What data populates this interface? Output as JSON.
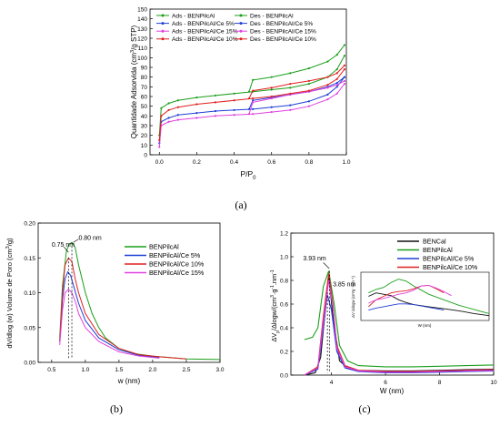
{
  "captions": {
    "a": "(a)",
    "b": "(b)",
    "c": "(c)"
  },
  "chart_data": [
    {
      "id": "a",
      "type": "line",
      "ylabel_main": "Quantidade Adsorvida (cm",
      "ylabel_sup": "3",
      "ylabel_tail": "/g STP)",
      "xlabel_main": "P/P",
      "xlabel_sub": "0",
      "xlim": [
        -0.05,
        1.0
      ],
      "ylim": [
        0,
        150
      ],
      "xticks": [
        "0.0",
        "0.2",
        "0.4",
        "0.6",
        "0.8",
        "1.0"
      ],
      "xtick_values": [
        0,
        0.2,
        0.4,
        0.6,
        0.8,
        1.0
      ],
      "yticks": [
        "0",
        "10",
        "20",
        "30",
        "40",
        "50",
        "60",
        "70",
        "80",
        "90",
        "100",
        "110",
        "120",
        "130",
        "140",
        "150"
      ],
      "ytick_values": [
        0,
        10,
        20,
        30,
        40,
        50,
        60,
        70,
        80,
        90,
        100,
        110,
        120,
        130,
        140,
        150
      ],
      "legend": [
        "Ads - BENPilcAl",
        "Des - BENPilcAl",
        "Ads - BENPilcAl/Ce 5%",
        "Des - BENPilcAl/Ce 5%",
        "Ads - BENPilcAl/Ce 15%",
        "Des - BENPilcAl/Ce 15%",
        "Ads - BENPilcAl/Ce 10%",
        "Des - BENPilcAl/Ce 10%"
      ],
      "series": [
        {
          "name": "Ads - BENPilcAl",
          "color": "#1a9e1a",
          "x": [
            0,
            0.01,
            0.05,
            0.1,
            0.2,
            0.3,
            0.4,
            0.5,
            0.6,
            0.7,
            0.8,
            0.9,
            0.95,
            0.99
          ],
          "y": [
            20,
            48,
            53,
            56,
            59,
            61,
            63,
            65,
            67,
            69,
            73,
            80,
            88,
            102
          ]
        },
        {
          "name": "Des - BENPilcAl",
          "color": "#1a9e1a",
          "x": [
            0.48,
            0.5,
            0.6,
            0.7,
            0.8,
            0.9,
            0.95,
            0.99
          ],
          "y": [
            65,
            77,
            80,
            84,
            89,
            96,
            103,
            113
          ]
        },
        {
          "name": "Ads - BENPilcAl/Ce 5%",
          "color": "#1f3fd6",
          "x": [
            0,
            0.01,
            0.05,
            0.1,
            0.2,
            0.3,
            0.4,
            0.5,
            0.6,
            0.7,
            0.8,
            0.9,
            0.95,
            0.99
          ],
          "y": [
            12,
            34,
            38,
            41,
            43,
            45,
            46,
            47,
            49,
            51,
            55,
            62,
            70,
            80
          ]
        },
        {
          "name": "Des - BENPilcAl/Ce 5%",
          "color": "#1f3fd6",
          "x": [
            0.48,
            0.5,
            0.6,
            0.7,
            0.8,
            0.9,
            0.95,
            0.99
          ],
          "y": [
            47,
            56,
            59,
            62,
            65,
            70,
            74,
            80
          ]
        },
        {
          "name": "Ads - BENPilcAl/Ce 15%",
          "color": "#e040e0",
          "x": [
            0,
            0.01,
            0.05,
            0.1,
            0.2,
            0.3,
            0.4,
            0.5,
            0.6,
            0.7,
            0.8,
            0.9,
            0.95,
            0.99
          ],
          "y": [
            8,
            30,
            34,
            36,
            38,
            40,
            41,
            42,
            44,
            46,
            50,
            57,
            63,
            73
          ]
        },
        {
          "name": "Des - BENPilcAl/Ce 15%",
          "color": "#e040e0",
          "x": [
            0.48,
            0.5,
            0.6,
            0.7,
            0.8,
            0.9,
            0.95,
            0.99
          ],
          "y": [
            42,
            54,
            58,
            62,
            65,
            69,
            72,
            76
          ]
        },
        {
          "name": "Ads - BENPilcAl/Ce 10%",
          "color": "#e02020",
          "x": [
            0,
            0.01,
            0.05,
            0.1,
            0.2,
            0.3,
            0.4,
            0.5,
            0.6,
            0.7,
            0.8,
            0.9,
            0.95,
            0.99
          ],
          "y": [
            15,
            40,
            46,
            49,
            52,
            54,
            56,
            58,
            60,
            63,
            66,
            72,
            78,
            88
          ]
        },
        {
          "name": "Des - BENPilcAl/Ce 10%",
          "color": "#e02020",
          "x": [
            0.48,
            0.5,
            0.6,
            0.7,
            0.8,
            0.9,
            0.95,
            0.99
          ],
          "y": [
            58,
            66,
            69,
            73,
            76,
            80,
            84,
            92
          ]
        }
      ]
    },
    {
      "id": "b",
      "type": "line",
      "ylabel_main": "dV/dlog (w) Volume de Poro (cm",
      "ylabel_sup": "3",
      "ylabel_tail": "/g)",
      "xlabel": "w (nm)",
      "xlim": [
        0.3,
        3.0
      ],
      "ylim": [
        0,
        0.2
      ],
      "xticks": [
        "0.5",
        "1.0",
        "1.5",
        "2.0",
        "2.5",
        "3.0"
      ],
      "xtick_values": [
        0.5,
        1.0,
        1.5,
        2.0,
        2.5,
        3.0
      ],
      "yticks": [
        "0.00",
        "0.05",
        "0.10",
        "0.15",
        "0.20"
      ],
      "ytick_values": [
        0,
        0.05,
        0.1,
        0.15,
        0.2
      ],
      "annotations": [
        "0.75 nm",
        "0.80 nm"
      ],
      "legend": [
        "BENPilcAl",
        "BENPilcAl/Ce 5%",
        "BENPilcAl/Ce 10%",
        "BENPilcAl/Ce 15%"
      ],
      "series": [
        {
          "name": "BENPilcAl",
          "color": "#1a9e1a",
          "x": [
            0.62,
            0.66,
            0.72,
            0.76,
            0.8,
            0.85,
            0.9,
            1.0,
            1.1,
            1.2,
            1.3,
            1.5,
            1.7,
            2.0,
            2.5,
            3.0
          ],
          "y": [
            0.035,
            0.11,
            0.16,
            0.17,
            0.172,
            0.165,
            0.14,
            0.1,
            0.07,
            0.05,
            0.035,
            0.02,
            0.013,
            0.009,
            0.005,
            0.004
          ]
        },
        {
          "name": "BENPilcAl/Ce 5%",
          "color": "#1f3fd6",
          "x": [
            0.62,
            0.66,
            0.7,
            0.74,
            0.78,
            0.84,
            0.9,
            1.0,
            1.2,
            1.5,
            1.8,
            2.1
          ],
          "y": [
            0.03,
            0.09,
            0.12,
            0.13,
            0.125,
            0.105,
            0.085,
            0.06,
            0.035,
            0.018,
            0.01,
            0.007
          ]
        },
        {
          "name": "BENPilcAl/Ce 10%",
          "color": "#e02020",
          "x": [
            0.62,
            0.66,
            0.7,
            0.75,
            0.8,
            0.85,
            0.9,
            1.0,
            1.2,
            1.5,
            1.8,
            2.1,
            2.5
          ],
          "y": [
            0.03,
            0.1,
            0.14,
            0.15,
            0.145,
            0.12,
            0.1,
            0.07,
            0.04,
            0.02,
            0.011,
            0.008,
            0.005
          ]
        },
        {
          "name": "BENPilcAl/Ce 15%",
          "color": "#e040e0",
          "x": [
            0.62,
            0.66,
            0.7,
            0.75,
            0.8,
            0.86,
            0.9,
            1.0,
            1.2,
            1.5,
            1.8,
            2.1
          ],
          "y": [
            0.025,
            0.075,
            0.1,
            0.105,
            0.1,
            0.085,
            0.07,
            0.05,
            0.03,
            0.015,
            0.009,
            0.006
          ]
        }
      ]
    },
    {
      "id": "c",
      "type": "line",
      "ylabel_main": "ΔV",
      "ylabel_rest": "/Δlogw/(cm",
      "ylabel_unit": "·g",
      "ylabel_end": ".nm",
      "xlabel": "W (nm)",
      "xlim": [
        2.5,
        10
      ],
      "ylim": [
        0,
        1.2
      ],
      "xticks": [
        "4",
        "6",
        "8",
        "10"
      ],
      "xtick_values": [
        4,
        6,
        8,
        10
      ],
      "yticks": [
        "0.0",
        "0.2",
        "0.4",
        "0.6",
        "0.8",
        "1.0",
        "1.2"
      ],
      "ytick_values": [
        0,
        0.2,
        0.4,
        0.6,
        0.8,
        1.0,
        1.2
      ],
      "annotations": [
        "3.93 nm",
        "3.85 nm"
      ],
      "legend": [
        "BENCal",
        "BENPilcAl",
        "BENPilcAl/Ce 5%",
        "BENPilcAl/Ce 10%",
        "BENPilcAl/Ce 15%"
      ],
      "series": [
        {
          "name": "BENCal",
          "color": "#111111",
          "x": [
            3.0,
            3.4,
            3.6,
            3.75,
            3.9,
            4.05,
            4.3,
            4.6,
            5,
            6,
            7,
            8,
            9,
            10
          ],
          "y": [
            0.0,
            0.02,
            0.15,
            0.5,
            0.85,
            0.5,
            0.12,
            0.06,
            0.04,
            0.035,
            0.035,
            0.04,
            0.045,
            0.05
          ]
        },
        {
          "name": "BENPilcAl",
          "color": "#1a9e1a",
          "x": [
            3.0,
            3.3,
            3.5,
            3.7,
            3.9,
            4.1,
            4.3,
            4.6,
            5,
            6,
            7,
            8,
            9,
            10
          ],
          "y": [
            0.3,
            0.32,
            0.4,
            0.75,
            0.88,
            0.6,
            0.25,
            0.12,
            0.08,
            0.07,
            0.07,
            0.075,
            0.08,
            0.085
          ]
        },
        {
          "name": "BENPilcAl/Ce 5%",
          "color": "#1f3fd6",
          "x": [
            3.0,
            3.5,
            3.7,
            3.85,
            4.0,
            4.2,
            4.5,
            5,
            6,
            7,
            8,
            9,
            10
          ],
          "y": [
            0.0,
            0.05,
            0.4,
            0.68,
            0.55,
            0.2,
            0.06,
            0.03,
            0.02,
            0.02,
            0.025,
            0.03,
            0.035
          ]
        },
        {
          "name": "BENPilcAl/Ce 10%",
          "color": "#e02020",
          "x": [
            3.0,
            3.5,
            3.7,
            3.9,
            4.05,
            4.2,
            4.5,
            5,
            6,
            7,
            8,
            9,
            10
          ],
          "y": [
            0.0,
            0.07,
            0.5,
            0.86,
            0.6,
            0.25,
            0.08,
            0.04,
            0.03,
            0.03,
            0.035,
            0.04,
            0.045
          ]
        },
        {
          "name": "BENPilcAl/Ce 15%",
          "color": "#e040e0",
          "x": [
            3.0,
            3.5,
            3.7,
            3.9,
            4.05,
            4.2,
            4.5,
            5,
            6,
            7,
            8,
            9,
            10
          ],
          "y": [
            0.0,
            0.06,
            0.45,
            0.8,
            0.58,
            0.23,
            0.07,
            0.035,
            0.025,
            0.025,
            0.03,
            0.035,
            0.04
          ]
        }
      ],
      "inset": {
        "ylabel": "ΔV /Δlogw (cm³g⁻¹nm⁻¹)",
        "xlabel": "W (nm)",
        "series": [
          {
            "name": "BENCal",
            "color": "#111111",
            "x": [
              4,
              5,
              6,
              7,
              8,
              9,
              10,
              12,
              14,
              16,
              18,
              20
            ],
            "y": [
              0.055,
              0.06,
              0.058,
              0.056,
              0.05,
              0.046,
              0.043,
              0.04,
              0.037,
              0.034,
              0.03,
              0.027
            ]
          },
          {
            "name": "BENPilcAl",
            "color": "#1a9e1a",
            "x": [
              4,
              5,
              6,
              7,
              8,
              9,
              10,
              11,
              12,
              14,
              16,
              18,
              20
            ],
            "y": [
              0.06,
              0.065,
              0.068,
              0.075,
              0.08,
              0.077,
              0.07,
              0.064,
              0.058,
              0.05,
              0.042,
              0.036,
              0.03
            ]
          },
          {
            "name": "BENPilcAl/Ce 5%",
            "color": "#1f3fd6",
            "x": [
              4,
              5,
              6,
              7,
              8,
              9,
              10,
              11,
              12,
              13,
              14
            ],
            "y": [
              0.035,
              0.038,
              0.04,
              0.042,
              0.044,
              0.044,
              0.043,
              0.041,
              0.039,
              0.037,
              0.035
            ]
          },
          {
            "name": "BENPilcAl/Ce 10%",
            "color": "#e02020",
            "x": [
              4,
              5,
              6,
              7,
              8,
              9,
              10,
              11,
              12,
              13,
              14
            ],
            "y": [
              0.04,
              0.05,
              0.055,
              0.06,
              0.062,
              0.063,
              0.066,
              0.07,
              0.071,
              0.066,
              0.06
            ]
          },
          {
            "name": "BENPilcAl/Ce 15%",
            "color": "#e040e0",
            "x": [
              4,
              5,
              6,
              7,
              8,
              9,
              10,
              11,
              12,
              13,
              14,
              15
            ],
            "y": [
              0.045,
              0.05,
              0.052,
              0.055,
              0.058,
              0.06,
              0.064,
              0.07,
              0.071,
              0.067,
              0.062,
              0.056
            ]
          }
        ]
      }
    }
  ]
}
